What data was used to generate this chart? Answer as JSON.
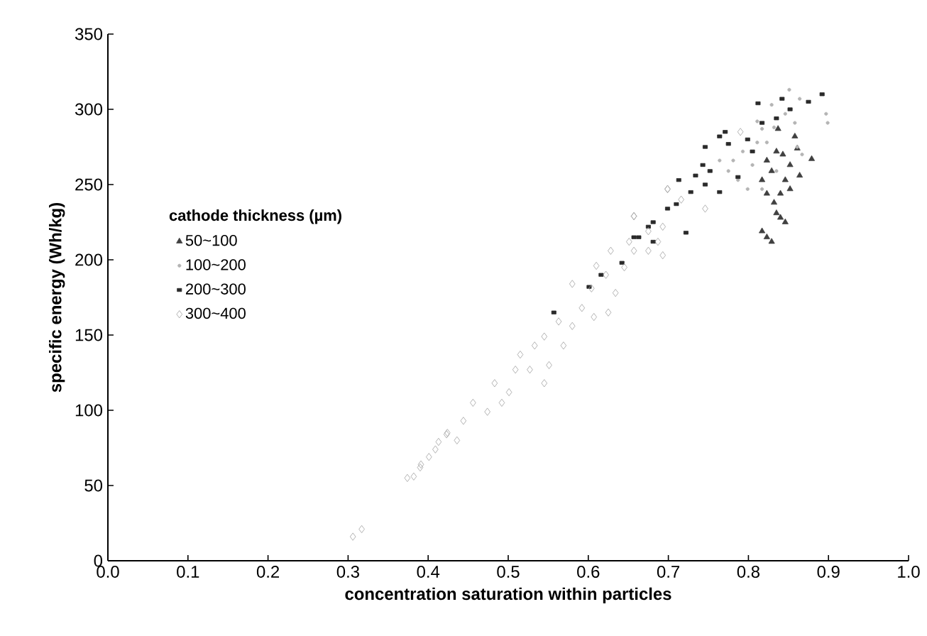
{
  "chart_data": {
    "type": "scatter",
    "xlabel": "concentration saturation within particles",
    "ylabel": "specific energy (Wh/kg)",
    "legend_title": "cathode thickness (µm)",
    "legend": "left",
    "grid": false,
    "xlim": [
      0,
      1
    ],
    "ylim": [
      0,
      350
    ],
    "xticks": [
      {
        "value": 0,
        "label": "0.0"
      },
      {
        "value": 0.1,
        "label": "0.1"
      },
      {
        "value": 0.2,
        "label": "0.2"
      },
      {
        "value": 0.3,
        "label": "0.3"
      },
      {
        "value": 0.4,
        "label": "0.4"
      },
      {
        "value": 0.5,
        "label": "0.5"
      },
      {
        "value": 0.6,
        "label": "0.6"
      },
      {
        "value": 0.7,
        "label": "0.7"
      },
      {
        "value": 0.8,
        "label": "0.8"
      },
      {
        "value": 0.9,
        "label": "0.9"
      },
      {
        "value": 1,
        "label": "1.0"
      }
    ],
    "yticks": [
      0,
      50,
      100,
      150,
      200,
      250,
      300,
      350
    ],
    "series": [
      {
        "name": "50~100",
        "color": "#404040",
        "marker": "triangle",
        "x": [
          0.879,
          0.823,
          0.829,
          0.84,
          0.835,
          0.846,
          0.823,
          0.84,
          0.829,
          0.846,
          0.852,
          0.861,
          0.837,
          0.864,
          0.817,
          0.835,
          0.823,
          0.852,
          0.858,
          0.832,
          0.843,
          0.817
        ],
        "values": [
          267,
          215,
          212,
          228,
          231,
          225,
          244,
          244,
          259,
          253,
          263,
          274,
          287,
          256,
          219,
          272,
          266,
          247,
          282,
          238,
          270,
          253
        ]
      },
      {
        "name": "100~200",
        "color": "#b4b4b4",
        "marker": "circle",
        "x": [
          0.851,
          0.897,
          0.899,
          0.864,
          0.829,
          0.811,
          0.799,
          0.817,
          0.775,
          0.793,
          0.823,
          0.858,
          0.846,
          0.811,
          0.805,
          0.835,
          0.861,
          0.764,
          0.781,
          0.867,
          0.832,
          0.817,
          0.787
        ],
        "values": [
          313,
          297,
          291,
          307,
          303,
          292,
          247,
          247,
          259,
          272,
          278,
          291,
          297,
          278,
          263,
          259,
          275,
          266,
          266,
          270,
          288,
          287,
          253
        ]
      },
      {
        "name": "200~300",
        "color": "#2a2a2a",
        "marker": "square",
        "x": [
          0.892,
          0.812,
          0.842,
          0.875,
          0.852,
          0.835,
          0.771,
          0.764,
          0.746,
          0.775,
          0.799,
          0.743,
          0.752,
          0.734,
          0.713,
          0.764,
          0.746,
          0.728,
          0.699,
          0.71,
          0.681,
          0.663,
          0.675,
          0.642,
          0.601,
          0.817,
          0.787,
          0.805,
          0.722,
          0.657,
          0.681,
          0.557,
          0.616
        ],
        "values": [
          310,
          304,
          307,
          305,
          300,
          294,
          285,
          282,
          275,
          277,
          280,
          263,
          259,
          256,
          253,
          245,
          250,
          245,
          234,
          237,
          225,
          215,
          222,
          198,
          182,
          291,
          255,
          272,
          218,
          215,
          212,
          165,
          190
        ]
      },
      {
        "name": "300~400",
        "color": "#a0a0a0",
        "marker": "diamond",
        "x": [
          0.306,
          0.317,
          0.374,
          0.382,
          0.39,
          0.401,
          0.413,
          0.423,
          0.436,
          0.391,
          0.409,
          0.424,
          0.444,
          0.456,
          0.474,
          0.483,
          0.492,
          0.501,
          0.509,
          0.515,
          0.533,
          0.545,
          0.551,
          0.569,
          0.58,
          0.563,
          0.592,
          0.607,
          0.625,
          0.604,
          0.622,
          0.634,
          0.645,
          0.657,
          0.675,
          0.687,
          0.693,
          0.699,
          0.657,
          0.58,
          0.527,
          0.545,
          0.79,
          0.699,
          0.746,
          0.716,
          0.657,
          0.675,
          0.693,
          0.651,
          0.628,
          0.61
        ],
        "values": [
          16,
          21,
          55,
          56,
          62,
          69,
          79,
          84,
          80,
          64,
          74,
          85,
          93,
          105,
          99,
          118,
          105,
          112,
          127,
          137,
          143,
          149,
          130,
          143,
          156,
          159,
          168,
          162,
          165,
          181,
          190,
          178,
          195,
          206,
          206,
          212,
          203,
          247,
          229,
          184,
          127,
          118,
          285,
          247,
          234,
          240,
          229,
          219,
          222,
          212,
          206,
          196
        ]
      }
    ]
  }
}
